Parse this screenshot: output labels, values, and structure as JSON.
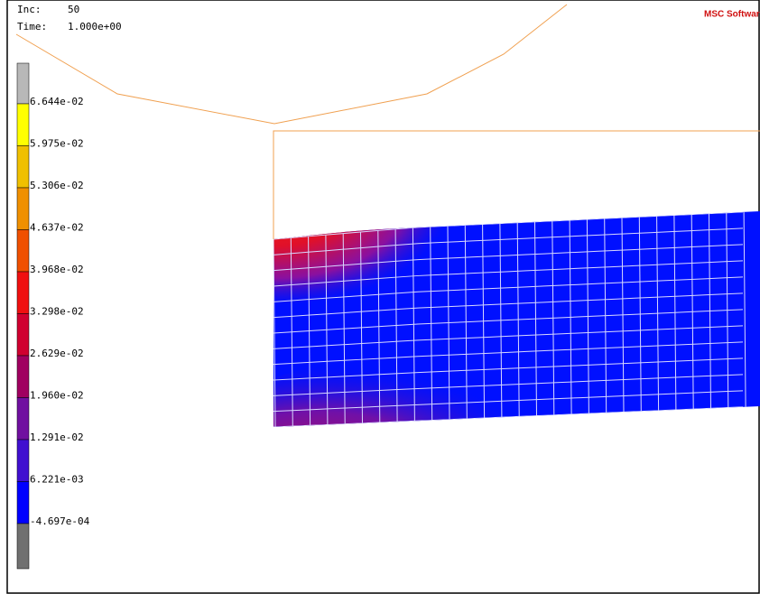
{
  "header": {
    "inc_label": "Inc:",
    "inc_value": "50",
    "time_label": "Time:",
    "time_value": "1.000e+00",
    "logo": "MSC Software"
  },
  "legend": {
    "labels": [
      "6.644e-02",
      "5.975e-02",
      "5.306e-02",
      "4.637e-02",
      "3.968e-02",
      "3.298e-02",
      "2.629e-02",
      "1.960e-02",
      "1.291e-02",
      "6.221e-03",
      "-4.697e-04"
    ]
  }
}
